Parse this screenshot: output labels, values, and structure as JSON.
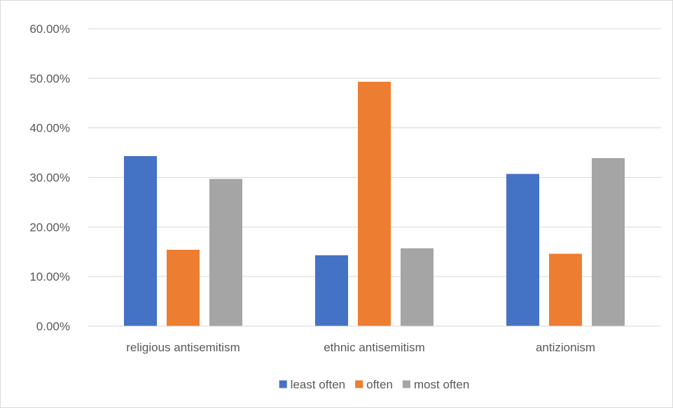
{
  "chart_data": {
    "type": "bar",
    "categories": [
      "religious antisemitism",
      "ethnic antisemitism",
      "antizionism"
    ],
    "series": [
      {
        "name": "least often",
        "color": "#4472c4",
        "values": [
          34.3,
          14.3,
          30.7
        ]
      },
      {
        "name": "often",
        "color": "#ed7d31",
        "values": [
          15.4,
          49.3,
          14.6
        ]
      },
      {
        "name": "most often",
        "color": "#a5a5a5",
        "values": [
          29.7,
          15.7,
          33.9
        ]
      }
    ],
    "yticks": [
      "0.00%",
      "10.00%",
      "20.00%",
      "30.00%",
      "40.00%",
      "50.00%",
      "60.00%"
    ],
    "ylim": [
      0,
      60
    ],
    "grid": true,
    "legend_position": "bottom",
    "title": "",
    "xlabel": "",
    "ylabel": ""
  }
}
